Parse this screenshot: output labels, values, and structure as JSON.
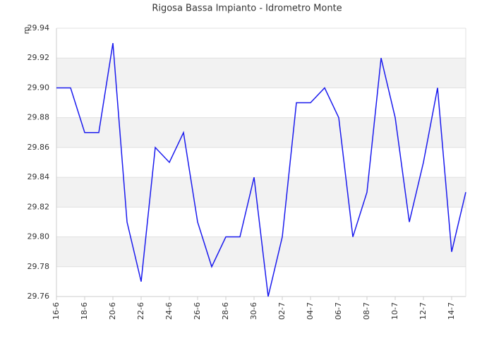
{
  "chart_data": {
    "type": "line",
    "title": "Rigosa Bassa Impianto - Idrometro Monte",
    "y_label": "m",
    "categories": [
      "16-6",
      null,
      "18-6",
      null,
      "20-6",
      null,
      "22-6",
      null,
      "24-6",
      null,
      "26-6",
      null,
      "28-6",
      null,
      "30-6",
      null,
      "02-7",
      null,
      "04-7",
      null,
      "06-7",
      null,
      "08-7",
      null,
      "10-7",
      null,
      "12-7",
      null,
      "14-7",
      null
    ],
    "series": [
      {
        "name": "Idrometro Monte",
        "color": "#1a1aee",
        "values": [
          29.9,
          29.9,
          29.87,
          29.87,
          29.93,
          29.81,
          29.77,
          29.86,
          29.85,
          29.87,
          29.81,
          29.78,
          29.8,
          29.8,
          29.84,
          29.76,
          29.8,
          29.89,
          29.89,
          29.9,
          29.88,
          29.8,
          29.83,
          29.92,
          29.88,
          29.81,
          29.85,
          29.9,
          29.79,
          29.83
        ]
      }
    ],
    "ylim": [
      29.76,
      29.94
    ],
    "yticks": [
      29.76,
      29.78,
      {
        "value": 29.8,
        "label": "29.80"
      },
      29.82,
      29.84,
      29.86,
      29.88,
      {
        "value": 29.9,
        "label": "29.90"
      },
      29.92,
      29.94
    ],
    "grid": true
  }
}
